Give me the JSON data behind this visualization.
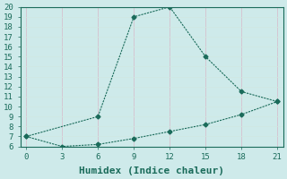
{
  "xlabel": "Humidex (Indice chaleur)",
  "background_color": "#ceeaea",
  "line_color": "#1a6b5a",
  "grid_color": "#b0d8d8",
  "line1_x": [
    0,
    6,
    9,
    12,
    15,
    18,
    21
  ],
  "line1_y": [
    7,
    9,
    19,
    20,
    15,
    11.5,
    10.5
  ],
  "line2_x": [
    0,
    3,
    6,
    9,
    12,
    15,
    18,
    21
  ],
  "line2_y": [
    7,
    6,
    6.2,
    6.8,
    7.5,
    8.2,
    9.2,
    10.5
  ],
  "xlim": [
    -0.5,
    21.5
  ],
  "ylim": [
    6,
    20
  ],
  "xticks": [
    0,
    3,
    6,
    9,
    12,
    15,
    18,
    21
  ],
  "yticks": [
    6,
    7,
    8,
    9,
    10,
    11,
    12,
    13,
    14,
    15,
    16,
    17,
    18,
    19,
    20
  ],
  "font_family": "monospace",
  "tick_fontsize": 6.5,
  "xlabel_fontsize": 8
}
